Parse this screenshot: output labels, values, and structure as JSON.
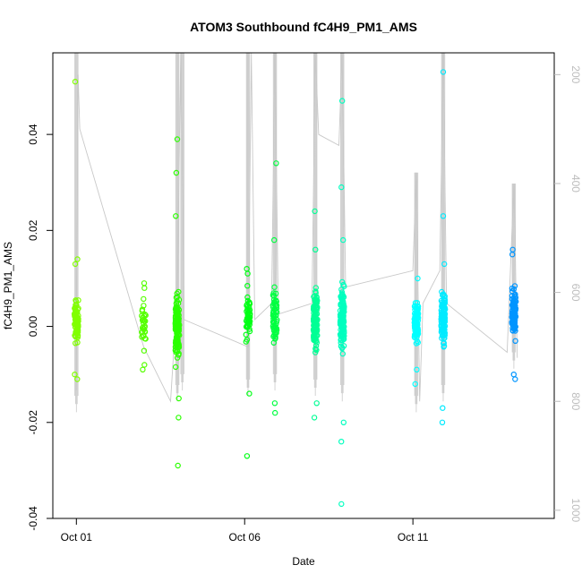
{
  "chart_data": {
    "type": "scatter",
    "title": "ATOM3 Southbound fC4H9_PM1_AMS",
    "xlabel": "Date",
    "ylabel": "fC4H9_PM1_AMS",
    "x_ticks": [
      {
        "label": "Oct 01",
        "day": 1
      },
      {
        "label": "Oct 06",
        "day": 6
      },
      {
        "label": "Oct 11",
        "day": 11
      }
    ],
    "xlim_days": [
      0.3,
      15.2
    ],
    "ylim": [
      -0.04,
      0.057
    ],
    "y_ticks": [
      -0.04,
      -0.02,
      0.0,
      0.02,
      0.04
    ],
    "y_tick_labels": [
      "-0.04",
      "-0.02",
      "0.00",
      "0.02",
      "0.04"
    ],
    "y2_ticks": [
      200,
      400,
      600,
      800,
      1000
    ],
    "y2_tick_labels": [
      "200",
      "400",
      "600",
      "800",
      "1000"
    ],
    "y2lim": [
      1015,
      160
    ],
    "clusters": [
      {
        "day": 1.0,
        "color": "#80ff00",
        "center": 0.001,
        "sd": 0.004,
        "n": 90,
        "extremes": [
          0.051,
          0.014,
          0.013,
          -0.01,
          -0.011
        ]
      },
      {
        "day": 3.0,
        "color": "#55ff00",
        "center": 0.0,
        "sd": 0.005,
        "n": 30,
        "extremes": [
          0.009,
          0.008,
          -0.008,
          -0.009
        ]
      },
      {
        "day": 4.0,
        "color": "#2bff00",
        "center": 0.0,
        "sd": 0.006,
        "n": 130,
        "extremes": [
          0.039,
          0.032,
          0.023,
          -0.015,
          -0.019,
          -0.029
        ]
      },
      {
        "day": 6.1,
        "color": "#00ff15",
        "center": 0.002,
        "sd": 0.005,
        "n": 50,
        "extremes": [
          0.012,
          0.011,
          -0.014,
          -0.027
        ]
      },
      {
        "day": 6.9,
        "color": "#00ff40",
        "center": 0.002,
        "sd": 0.006,
        "n": 60,
        "extremes": [
          0.034,
          0.018,
          -0.016,
          -0.018
        ]
      },
      {
        "day": 8.1,
        "color": "#00ff95",
        "center": 0.001,
        "sd": 0.006,
        "n": 110,
        "extremes": [
          0.024,
          0.016,
          -0.016,
          -0.019
        ]
      },
      {
        "day": 8.9,
        "color": "#00ffbf",
        "center": 0.001,
        "sd": 0.007,
        "n": 130,
        "extremes": [
          0.047,
          0.029,
          0.018,
          -0.02,
          -0.024,
          -0.037
        ]
      },
      {
        "day": 11.1,
        "color": "#00ffff",
        "center": 0.001,
        "sd": 0.004,
        "n": 90,
        "extremes": [
          0.01,
          -0.009,
          -0.012
        ]
      },
      {
        "day": 11.9,
        "color": "#00eaff",
        "center": 0.002,
        "sd": 0.005,
        "n": 120,
        "extremes": [
          0.053,
          0.023,
          0.013,
          -0.017,
          -0.02
        ]
      },
      {
        "day": 14.0,
        "color": "#0095ff",
        "center": 0.003,
        "sd": 0.005,
        "n": 100,
        "extremes": [
          0.016,
          0.015,
          -0.01,
          -0.011
        ]
      }
    ],
    "secondary_series": {
      "color": "#c8c8c8",
      "path": [
        [
          1.0,
          780
        ],
        [
          1.05,
          200
        ],
        [
          1.1,
          300
        ],
        [
          3.0,
          700
        ],
        [
          3.8,
          800
        ],
        [
          4.0,
          600
        ],
        [
          4.1,
          160
        ],
        [
          4.2,
          650
        ],
        [
          6.1,
          700
        ],
        [
          6.2,
          160
        ],
        [
          6.3,
          650
        ],
        [
          6.8,
          620
        ],
        [
          6.9,
          160
        ],
        [
          7.0,
          640
        ],
        [
          8.0,
          620
        ],
        [
          8.1,
          160
        ],
        [
          8.2,
          310
        ],
        [
          8.8,
          330
        ],
        [
          8.9,
          160
        ],
        [
          9.0,
          590
        ],
        [
          11.0,
          560
        ],
        [
          11.1,
          380
        ],
        [
          11.2,
          800
        ],
        [
          11.3,
          620
        ],
        [
          11.8,
          560
        ],
        [
          11.9,
          160
        ],
        [
          12.0,
          620
        ],
        [
          13.8,
          710
        ],
        [
          14.0,
          400
        ],
        [
          14.1,
          720
        ]
      ],
      "spikes": [
        {
          "day": 1.0,
          "min": 160,
          "max": 820
        },
        {
          "day": 4.0,
          "min": 160,
          "max": 800
        },
        {
          "day": 4.15,
          "min": 160,
          "max": 780
        },
        {
          "day": 6.1,
          "min": 160,
          "max": 790
        },
        {
          "day": 6.9,
          "min": 160,
          "max": 780
        },
        {
          "day": 8.1,
          "min": 160,
          "max": 790
        },
        {
          "day": 8.9,
          "min": 160,
          "max": 800
        },
        {
          "day": 11.1,
          "min": 380,
          "max": 820
        },
        {
          "day": 11.9,
          "min": 160,
          "max": 800
        },
        {
          "day": 14.0,
          "min": 400,
          "max": 740
        }
      ]
    },
    "grid": false,
    "legend": "none"
  }
}
